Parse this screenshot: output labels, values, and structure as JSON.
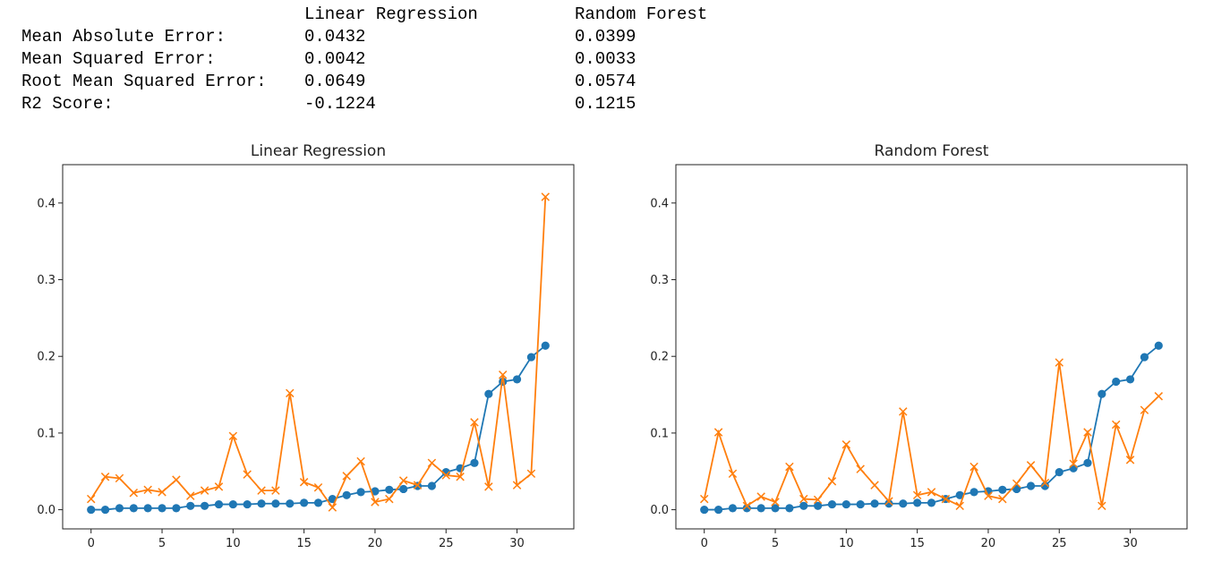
{
  "metrics_table": {
    "header": [
      "",
      "Linear Regression",
      "Random Forest"
    ],
    "rows": [
      {
        "label": "Mean Absolute Error:",
        "lr": "0.0432",
        "rf": "0.0399"
      },
      {
        "label": "Mean Squared Error:",
        "lr": "0.0042",
        "rf": "0.0033"
      },
      {
        "label": "Root Mean Squared Error:",
        "lr": "0.0649",
        "rf": "0.0574"
      },
      {
        "label": "R2 Score:",
        "lr": "-0.1224",
        "rf": "0.1215"
      }
    ]
  },
  "chart_data": [
    {
      "type": "line",
      "title": "Linear Regression",
      "xlim": [
        -2,
        34
      ],
      "ylim": [
        -0.025,
        0.45
      ],
      "xticks": [
        0,
        5,
        10,
        15,
        20,
        25,
        30
      ],
      "yticks": [
        0.0,
        0.1,
        0.2,
        0.3,
        0.4
      ],
      "ytick_labels": [
        "0.0",
        "0.1",
        "0.2",
        "0.3",
        "0.4"
      ],
      "series": [
        {
          "marker": "circle",
          "color": "#1f77b4",
          "values": [
            0.0,
            0.0,
            0.002,
            0.002,
            0.002,
            0.002,
            0.002,
            0.005,
            0.005,
            0.007,
            0.007,
            0.007,
            0.008,
            0.008,
            0.008,
            0.009,
            0.009,
            0.014,
            0.019,
            0.023,
            0.024,
            0.026,
            0.027,
            0.031,
            0.031,
            0.049,
            0.054,
            0.061,
            0.151,
            0.167,
            0.17,
            0.199,
            0.214
          ]
        },
        {
          "marker": "x",
          "color": "#ff7f0e",
          "values": [
            0.014,
            0.043,
            0.041,
            0.022,
            0.026,
            0.023,
            0.039,
            0.018,
            0.025,
            0.03,
            0.096,
            0.046,
            0.025,
            0.025,
            0.152,
            0.036,
            0.029,
            0.003,
            0.044,
            0.063,
            0.01,
            0.014,
            0.038,
            0.032,
            0.061,
            0.045,
            0.043,
            0.114,
            0.03,
            0.176,
            0.032,
            0.047,
            0.408
          ]
        }
      ]
    },
    {
      "type": "line",
      "title": "Random Forest",
      "xlim": [
        -2,
        34
      ],
      "ylim": [
        -0.025,
        0.45
      ],
      "xticks": [
        0,
        5,
        10,
        15,
        20,
        25,
        30
      ],
      "yticks": [
        0.0,
        0.1,
        0.2,
        0.3,
        0.4
      ],
      "ytick_labels": [
        "0.0",
        "0.1",
        "0.2",
        "0.3",
        "0.4"
      ],
      "series": [
        {
          "marker": "circle",
          "color": "#1f77b4",
          "values": [
            0.0,
            0.0,
            0.002,
            0.002,
            0.002,
            0.002,
            0.002,
            0.005,
            0.005,
            0.007,
            0.007,
            0.007,
            0.008,
            0.008,
            0.008,
            0.009,
            0.009,
            0.014,
            0.019,
            0.023,
            0.024,
            0.026,
            0.027,
            0.031,
            0.031,
            0.049,
            0.054,
            0.061,
            0.151,
            0.167,
            0.17,
            0.199,
            0.214
          ]
        },
        {
          "marker": "x",
          "color": "#ff7f0e",
          "values": [
            0.014,
            0.101,
            0.047,
            0.005,
            0.017,
            0.01,
            0.056,
            0.014,
            0.013,
            0.037,
            0.085,
            0.053,
            0.032,
            0.011,
            0.128,
            0.019,
            0.023,
            0.014,
            0.005,
            0.056,
            0.018,
            0.014,
            0.034,
            0.058,
            0.035,
            0.192,
            0.06,
            0.101,
            0.005,
            0.111,
            0.065,
            0.13,
            0.148
          ]
        }
      ]
    }
  ]
}
